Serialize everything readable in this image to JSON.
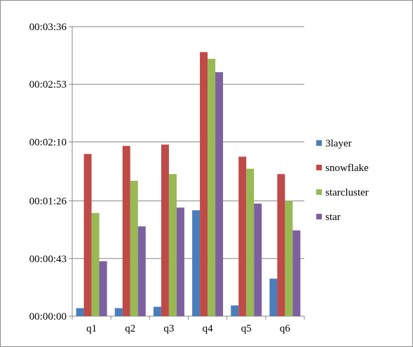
{
  "chart_data": {
    "type": "bar",
    "title": "",
    "xlabel": "",
    "ylabel": "",
    "y_unit": "seconds",
    "categories": [
      "q1",
      "q2",
      "q3",
      "q4",
      "q5",
      "q6"
    ],
    "ylim": [
      0,
      216
    ],
    "yticks": [
      0,
      43,
      86,
      130,
      173,
      216
    ],
    "ytick_labels": [
      "00:00:00",
      "00:00:43",
      "00:01:26",
      "00:02:10",
      "00:02:53",
      "00:03:36"
    ],
    "grid": "horizontal",
    "legend_position": "right",
    "series": [
      {
        "name": "3layer",
        "color": "#4A7EBB",
        "values": [
          6,
          6,
          7,
          79,
          8,
          28
        ]
      },
      {
        "name": "snowflake",
        "color": "#BE4B48",
        "values": [
          121,
          127,
          128,
          197,
          119,
          106
        ]
      },
      {
        "name": "starcluster",
        "color": "#98B954",
        "values": [
          77,
          101,
          106,
          192,
          110,
          86
        ]
      },
      {
        "name": "star",
        "color": "#7D60A0",
        "values": [
          41,
          67,
          81,
          182,
          84,
          64
        ]
      }
    ]
  }
}
